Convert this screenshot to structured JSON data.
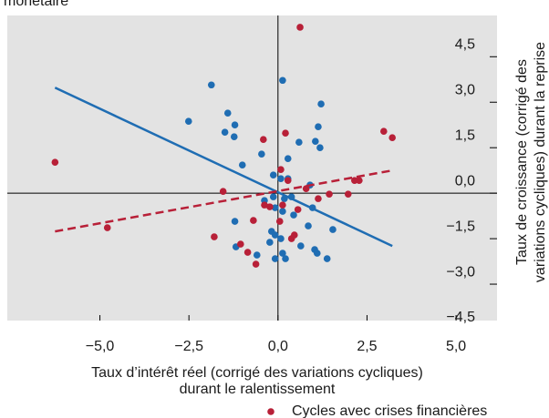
{
  "chart_data": {
    "type": "scatter",
    "title": "monétaire",
    "x_label": [
      "Taux d’intérêt réel (corrigé des variations cycliques)",
      "durant le ralentissement"
    ],
    "y_label": [
      "Taux de croissance (corrigé des",
      "variations cycliques) durant la reprise"
    ],
    "xlim": [
      -7.6,
      6.15
    ],
    "ylim": [
      -4.2,
      5.86
    ],
    "xticks": [
      {
        "value": -5,
        "label": "−5,0"
      },
      {
        "value": -2.5,
        "label": "−2,5"
      },
      {
        "value": 0,
        "label": "0,0"
      },
      {
        "value": 2.5,
        "label": "2,5"
      },
      {
        "value": 5,
        "label": "5,0"
      }
    ],
    "yticks": [
      {
        "value": -4.5,
        "label": "−4,5"
      },
      {
        "value": -3,
        "label": "−3,0"
      },
      {
        "value": -1.5,
        "label": "−1,5"
      },
      {
        "value": 0,
        "label": "0,0"
      },
      {
        "value": 1.5,
        "label": "1,5"
      },
      {
        "value": 3,
        "label": "3,0"
      },
      {
        "value": 4.5,
        "label": "4,5"
      }
    ],
    "y_axis_side": "right",
    "grid": false,
    "series": [
      {
        "color": "#1f6db3",
        "x": [
          -2.51,
          -1.87,
          -1.41,
          -1.21,
          -1.49,
          -1.23,
          -1.0,
          -0.46,
          0.13,
          0.28,
          0.59,
          1.21,
          1.13,
          1.18,
          1.05,
          -0.13,
          0.08,
          0.28,
          -0.13,
          0.18,
          0.38,
          -0.38,
          -0.08,
          0.13,
          0.44,
          -0.18,
          -0.08,
          -0.23,
          0.08,
          0.13,
          -0.08,
          0.21,
          0.64,
          0.85,
          0.97,
          1.03,
          1.1,
          1.38,
          1.54,
          0.9,
          -1.18,
          -0.59,
          -1.21
        ],
        "values": [
          2.37,
          3.57,
          2.64,
          2.25,
          2.01,
          1.86,
          0.93,
          1.29,
          3.72,
          1.14,
          1.68,
          2.94,
          2.19,
          1.5,
          1.71,
          0.6,
          0.48,
          0.48,
          -0.12,
          -0.18,
          -0.12,
          -0.24,
          -0.48,
          -0.6,
          -0.72,
          -1.26,
          -1.38,
          -1.62,
          -1.5,
          -1.98,
          -2.16,
          -2.16,
          -1.74,
          -1.08,
          -0.48,
          -1.86,
          -1.98,
          -2.16,
          -1.2,
          0.27,
          -1.77,
          -2.04,
          -0.93
        ]
      },
      {
        "name": "Cycles avec crises financières",
        "color": "#b82038",
        "x": [
          -6.26,
          -4.79,
          -1.54,
          -1.79,
          -1.05,
          -0.85,
          -0.62,
          -0.69,
          -0.41,
          -0.38,
          -0.23,
          0.21,
          0.62,
          0.08,
          0.28,
          0.05,
          0.13,
          0.38,
          0.46,
          0.56,
          0.79,
          1.13,
          1.44,
          1.97,
          2.15,
          2.28,
          2.97,
          3.21
        ],
        "values": [
          1.02,
          -1.14,
          0.06,
          -1.44,
          -1.68,
          -1.95,
          -2.34,
          -0.9,
          1.77,
          -0.39,
          -0.45,
          1.98,
          5.47,
          0.78,
          0.42,
          -0.93,
          -0.39,
          -1.5,
          -1.38,
          -0.54,
          0.15,
          -0.18,
          -0.03,
          -0.03,
          0.42,
          0.42,
          2.04,
          1.83
        ]
      }
    ],
    "trend_lines": [
      {
        "color": "#1f6db3",
        "dashed": false,
        "x": [
          -6.26,
          3.21
        ],
        "values": [
          3.48,
          -1.74
        ]
      },
      {
        "color": "#b82038",
        "dashed": true,
        "x": [
          -6.26,
          3.21
        ],
        "values": [
          -1.26,
          0.75
        ]
      }
    ]
  }
}
